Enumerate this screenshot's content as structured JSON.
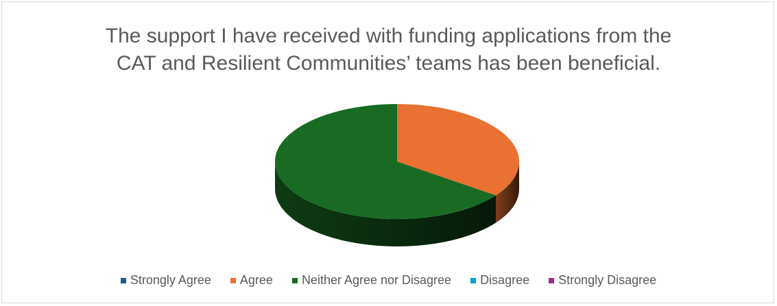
{
  "chart_data": {
    "type": "pie",
    "title_lines": [
      "The support I have received with funding applications from the",
      "CAT and Resilient Communities’ teams has been beneficial."
    ],
    "categories": [
      "Strongly Agree",
      "Agree",
      "Neither Agree nor Disagree",
      "Disagree",
      "Strongly Disagree"
    ],
    "values": [
      0,
      35,
      65,
      0,
      0
    ],
    "colors": [
      "#1f5c8b",
      "#e97132",
      "#196b24",
      "#0f9ed5",
      "#a02b93"
    ],
    "legend_position": "bottom",
    "style": "3d"
  }
}
